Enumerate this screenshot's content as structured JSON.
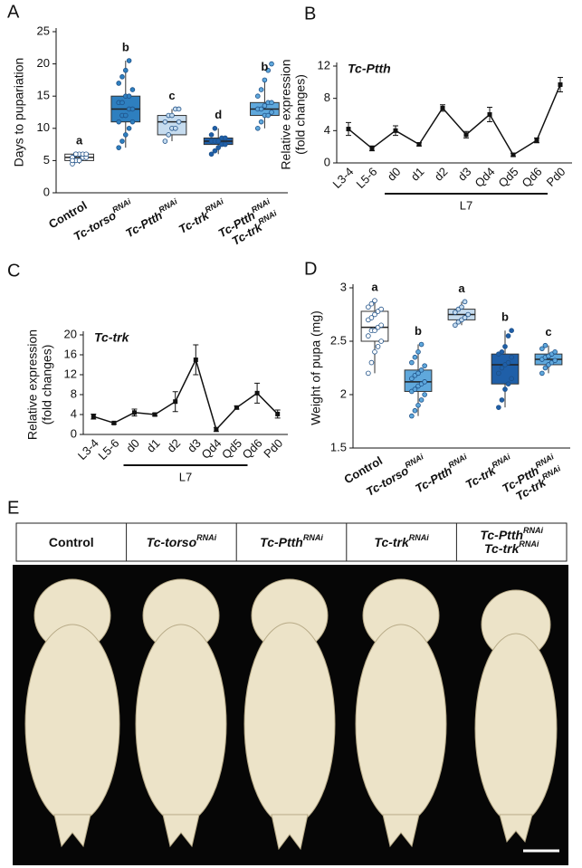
{
  "chart_data": [
    {
      "type": "box",
      "panel": "A",
      "ylabel": [
        "Days to pupariation"
      ],
      "categories": [
        [
          "Control"
        ],
        [
          "Tc-torso",
          "RNAi"
        ],
        [
          "Tc-Ptth",
          "RNAi"
        ],
        [
          "Tc-trk",
          "RNAi"
        ],
        [
          "Tc-Ptth",
          "RNAi",
          "Tc-trk",
          "RNAi"
        ]
      ],
      "letters": [
        "a",
        "b",
        "c",
        "d",
        "b"
      ],
      "ylim": [
        0,
        25
      ],
      "yticks": [
        0,
        5,
        10,
        15,
        20,
        25
      ],
      "boxes": [
        {
          "min": 4.5,
          "q1": 5,
          "median": 5.5,
          "q3": 6,
          "max": 6,
          "color": "#ffffff",
          "points": [
            4.5,
            5,
            5,
            5.5,
            5.5,
            5.5,
            6,
            6,
            6,
            6,
            5,
            6
          ]
        },
        {
          "min": 7,
          "q1": 11,
          "median": 13,
          "q3": 15,
          "max": 20.5,
          "color": "#2e7fbf",
          "points": [
            7,
            8,
            9,
            10,
            11,
            11,
            12,
            12,
            13,
            13,
            14,
            14,
            15,
            15,
            16,
            17,
            18,
            19,
            20.5
          ]
        },
        {
          "min": 8,
          "q1": 9,
          "median": 11,
          "q3": 12,
          "max": 13,
          "color": "#c6dcef",
          "points": [
            8,
            9,
            10,
            10,
            11,
            11,
            12,
            12,
            13,
            13
          ]
        },
        {
          "min": 6,
          "q1": 7.5,
          "median": 8,
          "q3": 8.5,
          "max": 10,
          "color": "#1f5fa8",
          "points": [
            6,
            6.5,
            7,
            7.5,
            7.5,
            8,
            8,
            8,
            8.5,
            8.5,
            9,
            10
          ]
        },
        {
          "min": 10,
          "q1": 12,
          "median": 13,
          "q3": 14,
          "max": 17.5,
          "color": "#5fa8dc",
          "points": [
            10,
            11,
            12,
            12,
            12.5,
            13,
            13,
            13.5,
            14,
            14,
            15,
            16,
            17.5,
            19,
            20
          ]
        }
      ]
    },
    {
      "type": "line",
      "panel": "B",
      "gene": "Tc-Ptth",
      "ylabel": [
        "Relative expression",
        "(fold changes)"
      ],
      "categories": [
        "L3-4",
        "L5-6",
        "d0",
        "d1",
        "d2",
        "d3",
        "Qd4",
        "Qd5",
        "Qd6",
        "Pd0"
      ],
      "values": [
        4.2,
        1.8,
        4,
        2.3,
        6.8,
        3.5,
        6,
        1,
        2.8,
        9.7
      ],
      "errors": [
        0.8,
        0.3,
        0.6,
        0.2,
        0.4,
        0.4,
        0.9,
        0.2,
        0.3,
        0.9
      ],
      "bracket": {
        "label": "L7",
        "span": [
          "d0",
          "Qd6"
        ]
      },
      "ylim": [
        0,
        12
      ],
      "yticks": [
        0,
        4,
        8,
        12
      ],
      "color": "#111111"
    },
    {
      "type": "line",
      "panel": "C",
      "gene": "Tc-trk",
      "ylabel": [
        "Relative expression",
        "(fold changes)"
      ],
      "categories": [
        "L3-4",
        "L5-6",
        "d0",
        "d1",
        "d2",
        "d3",
        "Qd4",
        "Qd5",
        "Qd6",
        "Pd0"
      ],
      "values": [
        3.6,
        2.3,
        4.4,
        4,
        6.6,
        15,
        1,
        5.4,
        8.3,
        4.1
      ],
      "errors": [
        0.5,
        0.2,
        0.7,
        0.3,
        2,
        3,
        0.4,
        0.3,
        2,
        0.8
      ],
      "bracket": {
        "label": "L7",
        "span": [
          "d0",
          "Qd5"
        ]
      },
      "ylim": [
        0,
        20
      ],
      "yticks": [
        0,
        4,
        8,
        12,
        16,
        20
      ],
      "color": "#111111"
    },
    {
      "type": "box",
      "panel": "D",
      "ylabel": [
        "Weight of pupa (mg)"
      ],
      "categories": [
        [
          "Control"
        ],
        [
          "Tc-torso",
          "RNAi"
        ],
        [
          "Tc-Ptth",
          "RNAi"
        ],
        [
          "Tc-trk",
          "RNAi"
        ],
        [
          "Tc-Ptth",
          "RNAi",
          "Tc-trk",
          "RNAi"
        ]
      ],
      "letters": [
        "a",
        "b",
        "a",
        "b",
        "c"
      ],
      "ylim": [
        1.5,
        3
      ],
      "yticks": [
        1.5,
        2,
        2.5,
        3
      ],
      "boxes": [
        {
          "min": 2.2,
          "q1": 2.5,
          "median": 2.63,
          "q3": 2.78,
          "max": 2.88,
          "color": "#ffffff",
          "points": [
            2.2,
            2.3,
            2.4,
            2.45,
            2.5,
            2.55,
            2.6,
            2.6,
            2.63,
            2.65,
            2.7,
            2.72,
            2.75,
            2.78,
            2.8,
            2.82,
            2.85,
            2.88
          ]
        },
        {
          "min": 1.8,
          "q1": 2.03,
          "median": 2.12,
          "q3": 2.23,
          "max": 2.47,
          "color": "#5fa8dc",
          "points": [
            1.8,
            1.85,
            1.9,
            1.95,
            2,
            2.03,
            2.05,
            2.08,
            2.1,
            2.12,
            2.15,
            2.18,
            2.2,
            2.23,
            2.27,
            2.3,
            2.35,
            2.4,
            2.47
          ]
        },
        {
          "min": 2.65,
          "q1": 2.7,
          "median": 2.75,
          "q3": 2.8,
          "max": 2.87,
          "color": "#c6dcef",
          "points": [
            2.65,
            2.68,
            2.7,
            2.72,
            2.75,
            2.77,
            2.8,
            2.82,
            2.87
          ]
        },
        {
          "min": 1.88,
          "q1": 2.1,
          "median": 2.28,
          "q3": 2.38,
          "max": 2.6,
          "color": "#1f5fa8",
          "points": [
            1.88,
            1.95,
            2.05,
            2.1,
            2.15,
            2.2,
            2.25,
            2.28,
            2.3,
            2.35,
            2.38,
            2.4,
            2.45,
            2.55,
            2.6
          ]
        },
        {
          "min": 2.2,
          "q1": 2.28,
          "median": 2.33,
          "q3": 2.38,
          "max": 2.46,
          "color": "#5fa8dc",
          "points": [
            2.2,
            2.25,
            2.28,
            2.3,
            2.32,
            2.33,
            2.35,
            2.36,
            2.38,
            2.4,
            2.43,
            2.46
          ]
        }
      ]
    }
  ],
  "photo_panel": {
    "panel": "E",
    "columns": [
      [
        "Control"
      ],
      [
        "Tc-torso",
        "RNAi"
      ],
      [
        "Tc-Ptth",
        "RNAi"
      ],
      [
        "Tc-trk",
        "RNAi"
      ],
      [
        "Tc-Ptth",
        "RNAi",
        "Tc-trk",
        "RNAi"
      ]
    ]
  }
}
